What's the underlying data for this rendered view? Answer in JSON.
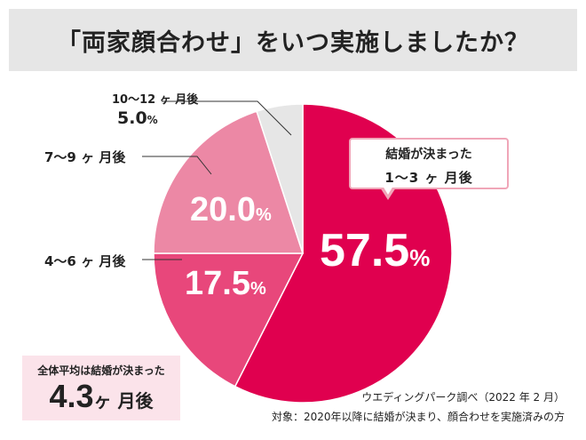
{
  "title": "「両家顔合わせ」をいつ実施しましたか？",
  "chart_data": {
    "type": "pie",
    "title": "「両家顔合わせ」をいつ実施しましたか？",
    "categories": [
      "1〜3ヶ月後",
      "4〜6ヶ月後",
      "7〜9ヶ月後",
      "10〜12ヶ月後"
    ],
    "values": [
      57.5,
      17.5,
      20.0,
      5.0
    ],
    "colors": [
      "#e0004f",
      "#e8477b",
      "#ec88a5",
      "#e6e6e6"
    ],
    "slices": [
      {
        "label": "1〜3 ヶ 月後",
        "value": "57.5",
        "unit": "%"
      },
      {
        "label": "4〜6 ヶ 月後",
        "value": "17.5",
        "unit": "%"
      },
      {
        "label": "7〜9 ヶ 月後",
        "value": "20.0",
        "unit": "%"
      },
      {
        "label": "10〜12 ヶ 月後",
        "value": "5.0",
        "unit": "%"
      }
    ]
  },
  "callout": {
    "line1": "結婚が決まった",
    "line2": "1〜3 ヶ 月後"
  },
  "average": {
    "label": "全体平均は結婚が決まった",
    "value": "4.3",
    "unit": "ヶ 月後"
  },
  "source": "ウエディングパーク調べ（2022 年 2 月）",
  "target": "対象：2020年以降に結婚が決まり、顔合わせを実施済みの方"
}
